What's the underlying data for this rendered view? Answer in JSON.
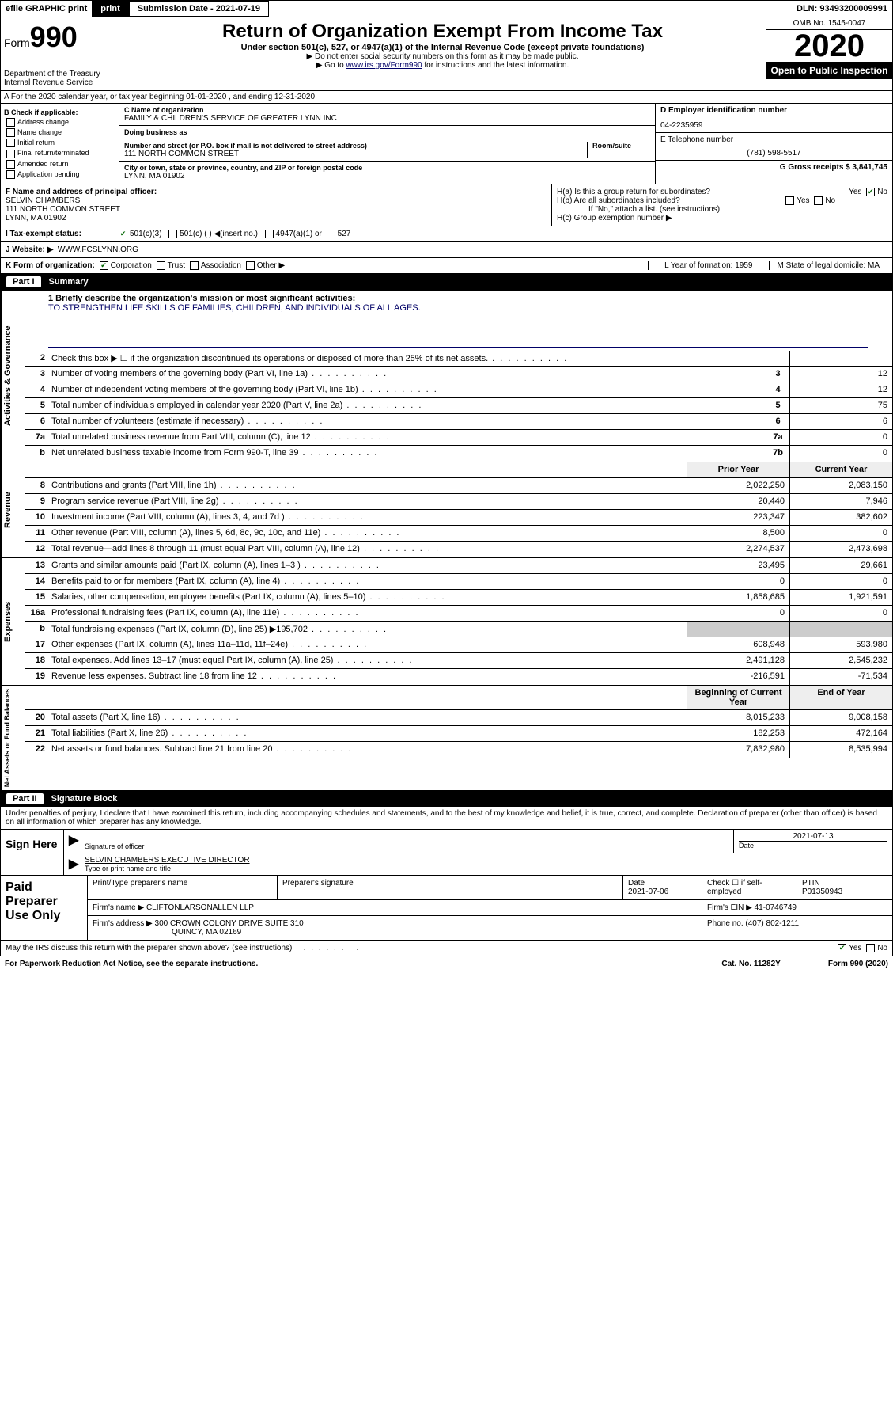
{
  "topbar": {
    "efile": "efile GRAPHIC print",
    "subdate_lbl": "Submission Date - 2021-07-19",
    "dln": "DLN: 93493200009991"
  },
  "header": {
    "form": "Form",
    "formno": "990",
    "dept": "Department of the Treasury",
    "irs": "Internal Revenue Service",
    "title": "Return of Organization Exempt From Income Tax",
    "sub": "Under section 501(c), 527, or 4947(a)(1) of the Internal Revenue Code (except private foundations)",
    "note1": "▶ Do not enter social security numbers on this form as it may be made public.",
    "note2": "▶ Go to www.irs.gov/Form990 for instructions and the latest information.",
    "omb": "OMB No. 1545-0047",
    "year": "2020",
    "open": "Open to Public Inspection"
  },
  "rowA": "A For the 2020 calendar year, or tax year beginning 01-01-2020   , and ending 12-31-2020",
  "colB": {
    "title": "B Check if applicable:",
    "items": [
      "Address change",
      "Name change",
      "Initial return",
      "Final return/terminated",
      "Amended return",
      "Application pending"
    ]
  },
  "colC": {
    "name_lbl": "C Name of organization",
    "name": "FAMILY & CHILDREN'S SERVICE OF GREATER LYNN INC",
    "dba_lbl": "Doing business as",
    "addr_lbl": "Number and street (or P.O. box if mail is not delivered to street address)",
    "room_lbl": "Room/suite",
    "addr": "111 NORTH COMMON STREET",
    "city_lbl": "City or town, state or province, country, and ZIP or foreign postal code",
    "city": "LYNN, MA  01902"
  },
  "colD": {
    "ein_lbl": "D Employer identification number",
    "ein": "04-2235959",
    "tel_lbl": "E Telephone number",
    "tel": "(781) 598-5517",
    "gross_lbl": "G Gross receipts $ 3,841,745"
  },
  "rowF": {
    "lbl": "F Name and address of principal officer:",
    "name": "SELVIN CHAMBERS",
    "addr": "111 NORTH COMMON STREET",
    "city": "LYNN, MA  01902"
  },
  "rowH": {
    "a": "H(a)  Is this a group return for subordinates?",
    "b": "H(b)  Are all subordinates included?",
    "b2": "If \"No,\" attach a list. (see instructions)",
    "c": "H(c)  Group exemption number ▶"
  },
  "rowI": {
    "lbl": "I   Tax-exempt status:",
    "opts": [
      "501(c)(3)",
      "501(c) (  ) ◀(insert no.)",
      "4947(a)(1) or",
      "527"
    ]
  },
  "rowJ": {
    "lbl": "J   Website: ▶",
    "val": "WWW.FCSLYNN.ORG"
  },
  "rowK": {
    "lbl": "K Form of organization:",
    "opts": [
      "Corporation",
      "Trust",
      "Association",
      "Other ▶"
    ],
    "l": "L Year of formation: 1959",
    "m": "M State of legal domicile: MA"
  },
  "part1": {
    "no": "Part I",
    "title": "Summary"
  },
  "mission": {
    "lbl": "1  Briefly describe the organization's mission or most significant activities:",
    "text": "TO STRENGTHEN LIFE SKILLS OF FAMILIES, CHILDREN, AND INDIVIDUALS OF ALL AGES."
  },
  "gov": [
    {
      "n": "2",
      "d": "Check this box ▶ ☐  if the organization discontinued its operations or disposed of more than 25% of its net assets.",
      "c": "",
      "v": ""
    },
    {
      "n": "3",
      "d": "Number of voting members of the governing body (Part VI, line 1a)",
      "c": "3",
      "v": "12"
    },
    {
      "n": "4",
      "d": "Number of independent voting members of the governing body (Part VI, line 1b)",
      "c": "4",
      "v": "12"
    },
    {
      "n": "5",
      "d": "Total number of individuals employed in calendar year 2020 (Part V, line 2a)",
      "c": "5",
      "v": "75"
    },
    {
      "n": "6",
      "d": "Total number of volunteers (estimate if necessary)",
      "c": "6",
      "v": "6"
    },
    {
      "n": "7a",
      "d": "Total unrelated business revenue from Part VIII, column (C), line 12",
      "c": "7a",
      "v": "0"
    },
    {
      "n": "b",
      "d": "Net unrelated business taxable income from Form 990-T, line 39",
      "c": "7b",
      "v": "0"
    }
  ],
  "revhdr": {
    "py": "Prior Year",
    "cy": "Current Year"
  },
  "rev": [
    {
      "n": "8",
      "d": "Contributions and grants (Part VIII, line 1h)",
      "p": "2,022,250",
      "c": "2,083,150"
    },
    {
      "n": "9",
      "d": "Program service revenue (Part VIII, line 2g)",
      "p": "20,440",
      "c": "7,946"
    },
    {
      "n": "10",
      "d": "Investment income (Part VIII, column (A), lines 3, 4, and 7d )",
      "p": "223,347",
      "c": "382,602"
    },
    {
      "n": "11",
      "d": "Other revenue (Part VIII, column (A), lines 5, 6d, 8c, 9c, 10c, and 11e)",
      "p": "8,500",
      "c": "0"
    },
    {
      "n": "12",
      "d": "Total revenue—add lines 8 through 11 (must equal Part VIII, column (A), line 12)",
      "p": "2,274,537",
      "c": "2,473,698"
    }
  ],
  "exp": [
    {
      "n": "13",
      "d": "Grants and similar amounts paid (Part IX, column (A), lines 1–3 )",
      "p": "23,495",
      "c": "29,661"
    },
    {
      "n": "14",
      "d": "Benefits paid to or for members (Part IX, column (A), line 4)",
      "p": "0",
      "c": "0"
    },
    {
      "n": "15",
      "d": "Salaries, other compensation, employee benefits (Part IX, column (A), lines 5–10)",
      "p": "1,858,685",
      "c": "1,921,591"
    },
    {
      "n": "16a",
      "d": "Professional fundraising fees (Part IX, column (A), line 11e)",
      "p": "0",
      "c": "0"
    },
    {
      "n": "b",
      "d": "Total fundraising expenses (Part IX, column (D), line 25) ▶195,702",
      "p": "",
      "c": ""
    },
    {
      "n": "17",
      "d": "Other expenses (Part IX, column (A), lines 11a–11d, 11f–24e)",
      "p": "608,948",
      "c": "593,980"
    },
    {
      "n": "18",
      "d": "Total expenses. Add lines 13–17 (must equal Part IX, column (A), line 25)",
      "p": "2,491,128",
      "c": "2,545,232"
    },
    {
      "n": "19",
      "d": "Revenue less expenses. Subtract line 18 from line 12",
      "p": "-216,591",
      "c": "-71,534"
    }
  ],
  "nethdr": {
    "py": "Beginning of Current Year",
    "cy": "End of Year"
  },
  "net": [
    {
      "n": "20",
      "d": "Total assets (Part X, line 16)",
      "p": "8,015,233",
      "c": "9,008,158"
    },
    {
      "n": "21",
      "d": "Total liabilities (Part X, line 26)",
      "p": "182,253",
      "c": "472,164"
    },
    {
      "n": "22",
      "d": "Net assets or fund balances. Subtract line 21 from line 20",
      "p": "7,832,980",
      "c": "8,535,994"
    }
  ],
  "vlabels": {
    "gov": "Activities & Governance",
    "rev": "Revenue",
    "exp": "Expenses",
    "net": "Net Assets or Fund Balances"
  },
  "part2": {
    "no": "Part II",
    "title": "Signature Block"
  },
  "perjury": "Under penalties of perjury, I declare that I have examined this return, including accompanying schedules and statements, and to the best of my knowledge and belief, it is true, correct, and complete. Declaration of preparer (other than officer) is based on all information of which preparer has any knowledge.",
  "sign": {
    "here": "Sign Here",
    "sig_lbl": "Signature of officer",
    "date": "2021-07-13",
    "date_lbl": "Date",
    "name": "SELVIN CHAMBERS EXECUTIVE DIRECTOR",
    "name_lbl": "Type or print name and title"
  },
  "paid": {
    "title": "Paid Preparer Use Only",
    "prep_lbl": "Print/Type preparer's name",
    "sig_lbl": "Preparer's signature",
    "date_lbl": "Date",
    "date": "2021-07-06",
    "check_lbl": "Check ☐ if self-employed",
    "ptin_lbl": "PTIN",
    "ptin": "P01350943",
    "firm_lbl": "Firm's name    ▶",
    "firm": "CLIFTONLARSONALLEN LLP",
    "ein_lbl": "Firm's EIN ▶",
    "ein": "41-0746749",
    "addr_lbl": "Firm's address ▶",
    "addr": "300 CROWN COLONY DRIVE SUITE 310",
    "city": "QUINCY, MA  02169",
    "phone_lbl": "Phone no.",
    "phone": "(407) 802-1211"
  },
  "discuss": "May the IRS discuss this return with the preparer shown above? (see instructions)",
  "footer": {
    "pra": "For Paperwork Reduction Act Notice, see the separate instructions.",
    "cat": "Cat. No. 11282Y",
    "form": "Form 990 (2020)"
  }
}
